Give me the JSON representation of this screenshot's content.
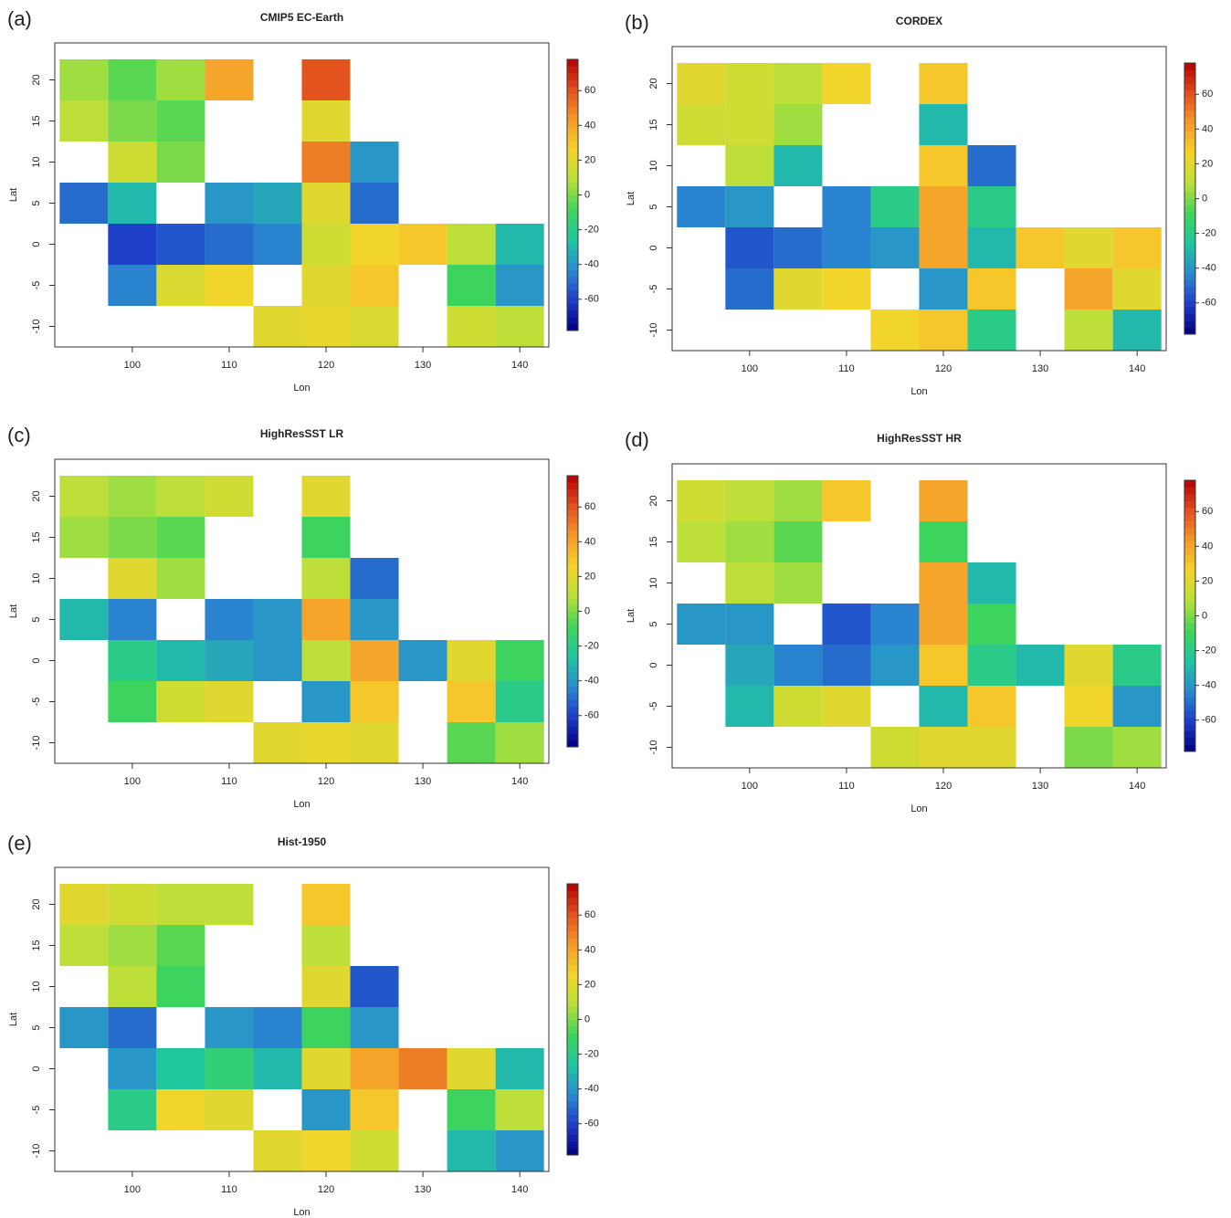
{
  "chart_data": [
    {
      "type": "heatmap",
      "label": "(a)",
      "title": "CMIP5 EC-Earth",
      "xlabel": "Lon",
      "ylabel": "Lat",
      "x": [
        95,
        100,
        105,
        110,
        115,
        120,
        125,
        130,
        135,
        140
      ],
      "y": [
        -10,
        -5,
        0,
        5,
        10,
        15,
        20
      ],
      "z": [
        [
          null,
          null,
          null,
          null,
          20,
          22,
          18,
          null,
          15,
          10
        ],
        [
          null,
          -45,
          18,
          25,
          null,
          20,
          30,
          null,
          -10,
          -40
        ],
        [
          null,
          -60,
          -55,
          -50,
          -45,
          15,
          25,
          30,
          10,
          -30
        ],
        [
          -50,
          -30,
          null,
          -40,
          -35,
          20,
          -50,
          null,
          null,
          null
        ],
        [
          null,
          15,
          0,
          null,
          null,
          50,
          -40,
          null,
          null,
          null
        ],
        [
          10,
          0,
          -5,
          null,
          null,
          20,
          null,
          null,
          null,
          null
        ],
        [
          5,
          -5,
          5,
          40,
          null,
          60,
          null,
          null,
          null,
          null
        ]
      ],
      "xlim": [
        92,
        143
      ],
      "ylim": [
        -12.5,
        24.5
      ],
      "xticks": [
        100,
        110,
        120,
        130,
        140
      ],
      "yticks": [
        -10,
        -5,
        0,
        5,
        10,
        15,
        20
      ],
      "zlim": [
        -78,
        78
      ],
      "zticks": [
        -60,
        -40,
        -20,
        0,
        20,
        40,
        60
      ],
      "colors": [
        "#00007f",
        "#1e3cc8",
        "#2a8ad0",
        "#1fc6a0",
        "#3fd45a",
        "#b9e03a",
        "#f5d42a",
        "#f59a2a",
        "#e2501e",
        "#b40000"
      ]
    },
    {
      "type": "heatmap",
      "label": "(b)",
      "title": "CORDEX",
      "xlabel": "Lon",
      "ylabel": "Lat",
      "x": [
        95,
        100,
        105,
        110,
        115,
        120,
        125,
        130,
        135,
        140
      ],
      "y": [
        -10,
        -5,
        0,
        5,
        10,
        15,
        20
      ],
      "z": [
        [
          null,
          null,
          null,
          null,
          25,
          30,
          -20,
          null,
          10,
          -30
        ],
        [
          null,
          -50,
          20,
          25,
          null,
          -40,
          30,
          null,
          40,
          20
        ],
        [
          null,
          -55,
          -50,
          -45,
          -40,
          40,
          -30,
          30,
          20,
          30
        ],
        [
          -45,
          -40,
          null,
          -45,
          -20,
          40,
          -20,
          null,
          null,
          null
        ],
        [
          null,
          10,
          -30,
          null,
          null,
          30,
          -50,
          null,
          null,
          null
        ],
        [
          15,
          15,
          5,
          null,
          null,
          -30,
          null,
          null,
          null,
          null
        ],
        [
          20,
          15,
          10,
          25,
          null,
          30,
          null,
          null,
          null,
          null
        ]
      ],
      "xlim": [
        92,
        143
      ],
      "ylim": [
        -12.5,
        24.5
      ],
      "xticks": [
        100,
        110,
        120,
        130,
        140
      ],
      "yticks": [
        -10,
        -5,
        0,
        5,
        10,
        15,
        20
      ],
      "zlim": [
        -78,
        78
      ],
      "zticks": [
        -60,
        -40,
        -20,
        0,
        20,
        40,
        60
      ],
      "colors": [
        "#00007f",
        "#1e3cc8",
        "#2a8ad0",
        "#1fc6a0",
        "#3fd45a",
        "#b9e03a",
        "#f5d42a",
        "#f59a2a",
        "#e2501e",
        "#b40000"
      ]
    },
    {
      "type": "heatmap",
      "label": "(c)",
      "title": "HighResSST LR",
      "xlabel": "Lon",
      "ylabel": "Lat",
      "x": [
        95,
        100,
        105,
        110,
        115,
        120,
        125,
        130,
        135,
        140
      ],
      "y": [
        -10,
        -5,
        0,
        5,
        10,
        15,
        20
      ],
      "z": [
        [
          null,
          null,
          null,
          null,
          20,
          22,
          20,
          null,
          -5,
          5
        ],
        [
          null,
          -10,
          15,
          20,
          null,
          -40,
          30,
          null,
          30,
          -20
        ],
        [
          null,
          -20,
          -30,
          -35,
          -40,
          10,
          40,
          -40,
          20,
          -10
        ],
        [
          -30,
          -45,
          null,
          -45,
          -40,
          40,
          -40,
          null,
          null,
          null
        ],
        [
          null,
          20,
          5,
          null,
          null,
          10,
          -50,
          null,
          null,
          null
        ],
        [
          5,
          0,
          -5,
          null,
          null,
          -10,
          null,
          null,
          null,
          null
        ],
        [
          10,
          5,
          10,
          15,
          null,
          20,
          null,
          null,
          null,
          null
        ]
      ],
      "xlim": [
        92,
        143
      ],
      "ylim": [
        -12.5,
        24.5
      ],
      "xticks": [
        100,
        110,
        120,
        130,
        140
      ],
      "yticks": [
        -10,
        -5,
        0,
        5,
        10,
        15,
        20
      ],
      "zlim": [
        -78,
        78
      ],
      "zticks": [
        -60,
        -40,
        -20,
        0,
        20,
        40,
        60
      ],
      "colors": [
        "#00007f",
        "#1e3cc8",
        "#2a8ad0",
        "#1fc6a0",
        "#3fd45a",
        "#b9e03a",
        "#f5d42a",
        "#f59a2a",
        "#e2501e",
        "#b40000"
      ]
    },
    {
      "type": "heatmap",
      "label": "(d)",
      "title": "HighResSST HR",
      "xlabel": "Lon",
      "ylabel": "Lat",
      "x": [
        95,
        100,
        105,
        110,
        115,
        120,
        125,
        130,
        135,
        140
      ],
      "y": [
        -10,
        -5,
        0,
        5,
        10,
        15,
        20
      ],
      "z": [
        [
          null,
          null,
          null,
          null,
          15,
          20,
          20,
          null,
          0,
          5
        ],
        [
          null,
          -30,
          15,
          20,
          null,
          -30,
          30,
          null,
          25,
          -40
        ],
        [
          null,
          -35,
          -45,
          -50,
          -40,
          30,
          -20,
          -30,
          20,
          -20
        ],
        [
          -40,
          -40,
          null,
          -55,
          -45,
          40,
          -10,
          null,
          null,
          null
        ],
        [
          null,
          10,
          5,
          null,
          null,
          40,
          -30,
          null,
          null,
          null
        ],
        [
          10,
          5,
          -5,
          null,
          null,
          -10,
          null,
          null,
          null,
          null
        ],
        [
          15,
          10,
          5,
          30,
          null,
          40,
          null,
          null,
          null,
          null
        ]
      ],
      "xlim": [
        92,
        143
      ],
      "ylim": [
        -12.5,
        24.5
      ],
      "xticks": [
        100,
        110,
        120,
        130,
        140
      ],
      "yticks": [
        -10,
        -5,
        0,
        5,
        10,
        15,
        20
      ],
      "zlim": [
        -78,
        78
      ],
      "zticks": [
        -60,
        -40,
        -20,
        0,
        20,
        40,
        60
      ],
      "colors": [
        "#00007f",
        "#1e3cc8",
        "#2a8ad0",
        "#1fc6a0",
        "#3fd45a",
        "#b9e03a",
        "#f5d42a",
        "#f59a2a",
        "#e2501e",
        "#b40000"
      ]
    },
    {
      "type": "heatmap",
      "label": "(e)",
      "title": "Hist-1950",
      "xlabel": "Lon",
      "ylabel": "Lat",
      "x": [
        95,
        100,
        105,
        110,
        115,
        120,
        125,
        130,
        135,
        140
      ],
      "y": [
        -10,
        -5,
        0,
        5,
        10,
        15,
        20
      ],
      "z": [
        [
          null,
          null,
          null,
          null,
          20,
          25,
          15,
          null,
          -30,
          -40
        ],
        [
          null,
          -20,
          25,
          20,
          null,
          -40,
          30,
          null,
          -10,
          10
        ],
        [
          null,
          -40,
          -25,
          -15,
          -30,
          20,
          40,
          50,
          20,
          -30
        ],
        [
          -40,
          -50,
          null,
          -40,
          -45,
          -10,
          -40,
          null,
          null,
          null
        ],
        [
          null,
          10,
          -10,
          null,
          null,
          20,
          -55,
          null,
          null,
          null
        ],
        [
          10,
          5,
          -5,
          null,
          null,
          10,
          null,
          null,
          null,
          null
        ],
        [
          20,
          15,
          10,
          10,
          null,
          30,
          null,
          null,
          null,
          null
        ]
      ],
      "xlim": [
        92,
        143
      ],
      "ylim": [
        -12.5,
        24.5
      ],
      "xticks": [
        100,
        110,
        120,
        130,
        140
      ],
      "yticks": [
        -10,
        -5,
        0,
        5,
        10,
        15,
        20
      ],
      "zlim": [
        -78,
        78
      ],
      "zticks": [
        -60,
        -40,
        -20,
        0,
        20,
        40,
        60
      ],
      "colors": [
        "#00007f",
        "#1e3cc8",
        "#2a8ad0",
        "#1fc6a0",
        "#3fd45a",
        "#b9e03a",
        "#f5d42a",
        "#f59a2a",
        "#e2501e",
        "#b40000"
      ]
    }
  ]
}
